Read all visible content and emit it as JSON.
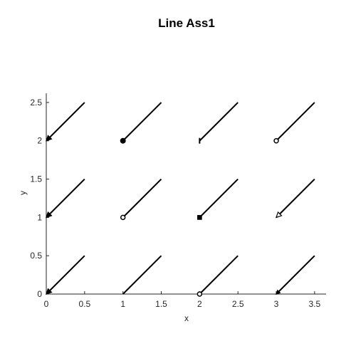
{
  "chart_data": {
    "type": "line",
    "title": "Line Ass1",
    "xlabel": "x",
    "ylabel": "y",
    "xlim": [
      0,
      3.65
    ],
    "ylim": [
      0,
      2.62
    ],
    "xticks": [
      0,
      0.5,
      1,
      1.5,
      2,
      2.5,
      3,
      3.5
    ],
    "xtick_labels": [
      "0",
      "0.5",
      "1",
      "1.5",
      "2",
      "2.5",
      "3",
      "3.5"
    ],
    "yticks": [
      0,
      0.5,
      1,
      1.5,
      2,
      2.5
    ],
    "ytick_labels": [
      "0",
      "0.5",
      "1",
      "1.5",
      "2",
      "2.5"
    ],
    "grid": false,
    "segments": [
      {
        "x": [
          0,
          0.5
        ],
        "y": [
          0,
          0.5
        ],
        "start_marker": "filled-arrow"
      },
      {
        "x": [
          1,
          1.5
        ],
        "y": [
          0,
          0.5
        ],
        "start_marker": "none"
      },
      {
        "x": [
          2,
          2.5
        ],
        "y": [
          0,
          0.5
        ],
        "start_marker": "open-circle"
      },
      {
        "x": [
          3,
          3.5
        ],
        "y": [
          0,
          0.5
        ],
        "start_marker": "small-arrow"
      },
      {
        "x": [
          0,
          0.5
        ],
        "y": [
          1,
          1.5
        ],
        "start_marker": "filled-arrow"
      },
      {
        "x": [
          1,
          1.5
        ],
        "y": [
          1,
          1.5
        ],
        "start_marker": "open-circle"
      },
      {
        "x": [
          2,
          2.5
        ],
        "y": [
          1,
          1.5
        ],
        "start_marker": "filled-diamond"
      },
      {
        "x": [
          3,
          3.5
        ],
        "y": [
          1,
          1.5
        ],
        "start_marker": "open-arrow"
      },
      {
        "x": [
          0,
          0.5
        ],
        "y": [
          2,
          2.5
        ],
        "start_marker": "filled-arrow"
      },
      {
        "x": [
          1,
          1.5
        ],
        "y": [
          2,
          2.5
        ],
        "start_marker": "filled-circle"
      },
      {
        "x": [
          2,
          2.5
        ],
        "y": [
          2,
          2.5
        ],
        "start_marker": "bar"
      },
      {
        "x": [
          3,
          3.5
        ],
        "y": [
          2,
          2.5
        ],
        "start_marker": "open-circle"
      }
    ]
  }
}
